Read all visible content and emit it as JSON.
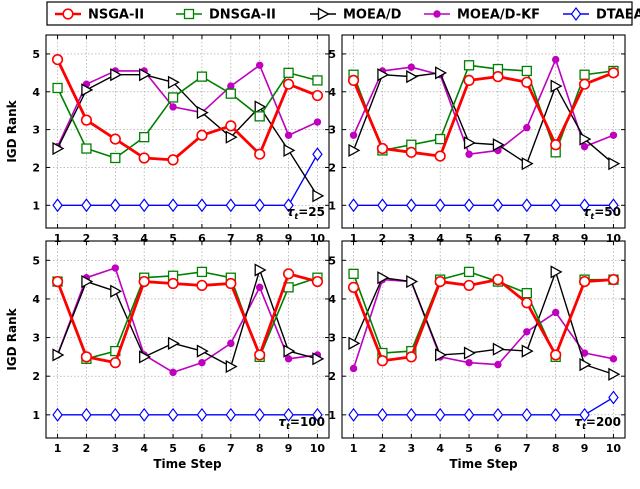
{
  "legend": {
    "entries": [
      {
        "name": "NSGA-II",
        "color": "#ff0000",
        "marker": "circle"
      },
      {
        "name": "DNSGA-II",
        "color": "#008000",
        "marker": "square"
      },
      {
        "name": "MOEA/D",
        "color": "#000000",
        "marker": "triangle-right"
      },
      {
        "name": "MOEA/D-KF",
        "color": "#bf00bf",
        "marker": "dot"
      },
      {
        "name": "DTAEA",
        "color": "#0000ff",
        "marker": "diamond"
      }
    ]
  },
  "chart_data": [
    {
      "type": "line",
      "panel": "top-left",
      "annotation": "τt=25",
      "x": [
        1,
        2,
        3,
        4,
        5,
        6,
        7,
        8,
        9,
        10
      ],
      "xlabel": "",
      "ylabel": "IGD Rank",
      "xlim": [
        0.6,
        10.4
      ],
      "ylim": [
        0.4,
        5.5
      ],
      "yticks": [
        1,
        2,
        3,
        4,
        5
      ],
      "grid": true,
      "series": [
        {
          "name": "NSGA-II",
          "values": [
            4.85,
            3.25,
            2.75,
            2.25,
            2.2,
            2.85,
            3.1,
            2.35,
            4.2,
            3.9
          ]
        },
        {
          "name": "DNSGA-II",
          "values": [
            4.1,
            2.5,
            2.25,
            2.8,
            3.85,
            4.4,
            3.95,
            3.35,
            4.5,
            4.3
          ]
        },
        {
          "name": "MOEA/D",
          "values": [
            2.5,
            4.05,
            4.45,
            4.45,
            4.25,
            3.45,
            2.8,
            3.6,
            2.45,
            1.25
          ]
        },
        {
          "name": "MOEA/D-KF",
          "values": [
            2.55,
            4.2,
            4.55,
            4.55,
            3.6,
            3.45,
            4.15,
            4.7,
            2.85,
            3.2
          ]
        },
        {
          "name": "DTAEA",
          "values": [
            1,
            1,
            1,
            1,
            1,
            1,
            1,
            1,
            1,
            2.35
          ]
        }
      ]
    },
    {
      "type": "line",
      "panel": "top-right",
      "annotation": "τt=50",
      "x": [
        1,
        2,
        3,
        4,
        5,
        6,
        7,
        8,
        9,
        10
      ],
      "xlabel": "",
      "ylabel": "",
      "xlim": [
        0.6,
        10.4
      ],
      "ylim": [
        0.4,
        5.5
      ],
      "yticks": [
        1,
        2,
        3,
        4,
        5
      ],
      "grid": true,
      "series": [
        {
          "name": "NSGA-II",
          "values": [
            4.3,
            2.5,
            2.4,
            2.3,
            4.3,
            4.4,
            4.25,
            2.6,
            4.2,
            4.5
          ]
        },
        {
          "name": "DNSGA-II",
          "values": [
            4.45,
            2.45,
            2.6,
            2.75,
            4.7,
            4.6,
            4.55,
            2.4,
            4.45,
            4.55
          ]
        },
        {
          "name": "MOEA/D",
          "values": [
            2.45,
            4.45,
            4.4,
            4.5,
            2.65,
            2.6,
            2.1,
            4.15,
            2.75,
            2.1
          ]
        },
        {
          "name": "MOEA/D-KF",
          "values": [
            2.85,
            4.55,
            4.65,
            4.45,
            2.35,
            2.45,
            3.05,
            4.85,
            2.55,
            2.85
          ]
        },
        {
          "name": "DTAEA",
          "values": [
            1,
            1,
            1,
            1,
            1,
            1,
            1,
            1,
            1,
            1
          ]
        }
      ]
    },
    {
      "type": "line",
      "panel": "bottom-left",
      "annotation": "τt=100",
      "x": [
        1,
        2,
        3,
        4,
        5,
        6,
        7,
        8,
        9,
        10
      ],
      "xlabel": "Time Step",
      "ylabel": "IGD Rank",
      "xlim": [
        0.6,
        10.4
      ],
      "ylim": [
        0.4,
        5.5
      ],
      "yticks": [
        1,
        2,
        3,
        4,
        5
      ],
      "grid": true,
      "series": [
        {
          "name": "NSGA-II",
          "values": [
            4.45,
            2.5,
            2.35,
            4.45,
            4.4,
            4.35,
            4.4,
            2.55,
            4.65,
            4.45
          ]
        },
        {
          "name": "DNSGA-II",
          "values": [
            4.45,
            2.45,
            2.65,
            4.55,
            4.6,
            4.7,
            4.55,
            2.5,
            4.3,
            4.55
          ]
        },
        {
          "name": "MOEA/D",
          "values": [
            2.55,
            4.45,
            4.2,
            2.5,
            2.85,
            2.65,
            2.25,
            4.75,
            2.65,
            2.45
          ]
        },
        {
          "name": "MOEA/D-KF",
          "values": [
            2.55,
            4.55,
            4.8,
            2.55,
            2.1,
            2.35,
            2.85,
            4.3,
            2.45,
            2.55
          ]
        },
        {
          "name": "DTAEA",
          "values": [
            1,
            1,
            1,
            1,
            1,
            1,
            1,
            1,
            1,
            1
          ]
        }
      ]
    },
    {
      "type": "line",
      "panel": "bottom-right",
      "annotation": "τt=200",
      "x": [
        1,
        2,
        3,
        4,
        5,
        6,
        7,
        8,
        9,
        10
      ],
      "xlabel": "Time Step",
      "ylabel": "",
      "xlim": [
        0.6,
        10.4
      ],
      "ylim": [
        0.4,
        5.5
      ],
      "yticks": [
        1,
        2,
        3,
        4,
        5
      ],
      "grid": true,
      "series": [
        {
          "name": "NSGA-II",
          "values": [
            4.3,
            2.4,
            2.5,
            4.45,
            4.35,
            4.5,
            3.9,
            2.55,
            4.45,
            4.5
          ]
        },
        {
          "name": "DNSGA-II",
          "values": [
            4.65,
            2.6,
            2.65,
            4.5,
            4.7,
            4.45,
            4.15,
            2.5,
            4.5,
            4.5
          ]
        },
        {
          "name": "MOEA/D",
          "values": [
            2.85,
            4.55,
            4.45,
            2.55,
            2.6,
            2.7,
            2.65,
            4.7,
            2.3,
            2.05
          ]
        },
        {
          "name": "MOEA/D-KF",
          "values": [
            2.2,
            4.5,
            4.45,
            2.5,
            2.35,
            2.3,
            3.15,
            3.65,
            2.6,
            2.45
          ]
        },
        {
          "name": "DTAEA",
          "values": [
            1,
            1,
            1,
            1,
            1,
            1,
            1,
            1,
            1,
            1.45
          ]
        }
      ]
    }
  ]
}
